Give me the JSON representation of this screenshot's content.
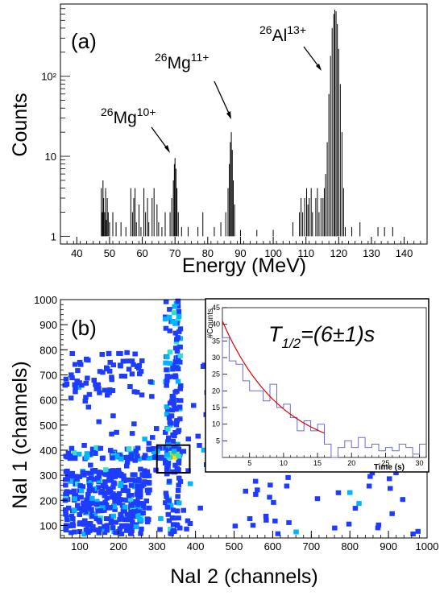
{
  "chart_data": [
    {
      "panel": "(a)",
      "type": "bar",
      "xlabel": "Energy (MeV)",
      "ylabel": "Counts",
      "log_y": true,
      "xlim": [
        35,
        147
      ],
      "ylim": [
        0.8,
        800
      ],
      "xticks": [
        40,
        50,
        60,
        70,
        80,
        90,
        100,
        110,
        120,
        130,
        140
      ],
      "yticks": [
        {
          "value": 1,
          "label": "1"
        },
        {
          "value": 10,
          "label": "10"
        },
        {
          "value": 100,
          "label": "10²"
        }
      ],
      "peaks": [
        {
          "label_mass": "26",
          "label_element": "Mg",
          "label_charge": "10+",
          "energy": 70,
          "counts": 9.5
        },
        {
          "label_mass": "26",
          "label_element": "Mg",
          "label_charge": "11+",
          "energy": 87,
          "counts": 20
        },
        {
          "label_mass": "26",
          "label_element": "Al",
          "label_charge": "13+",
          "energy": 119,
          "counts": 680
        }
      ],
      "histogram": [
        [
          47.5,
          4
        ],
        [
          47.8,
          2
        ],
        [
          48.0,
          5
        ],
        [
          48.2,
          3
        ],
        [
          48.5,
          2
        ],
        [
          48.8,
          4
        ],
        [
          49.0,
          1.6
        ],
        [
          49.3,
          3
        ],
        [
          49.6,
          2
        ],
        [
          50.0,
          1.5
        ],
        [
          51.0,
          2
        ],
        [
          52.0,
          1.5
        ],
        [
          53.5,
          1.5
        ],
        [
          55.0,
          1.3
        ],
        [
          56.5,
          4
        ],
        [
          57.0,
          2
        ],
        [
          57.4,
          3
        ],
        [
          57.8,
          4
        ],
        [
          58.2,
          1.5
        ],
        [
          59.0,
          2.5
        ],
        [
          59.6,
          1.3
        ],
        [
          60.5,
          4
        ],
        [
          61.0,
          2
        ],
        [
          61.6,
          3
        ],
        [
          62.0,
          1.5
        ],
        [
          63.0,
          3
        ],
        [
          63.6,
          4
        ],
        [
          64.5,
          2.5
        ],
        [
          65.0,
          1.5
        ],
        [
          66.0,
          1.3
        ],
        [
          67.0,
          2
        ],
        [
          68.5,
          2
        ],
        [
          69.0,
          3
        ],
        [
          69.5,
          5
        ],
        [
          69.8,
          8
        ],
        [
          70.0,
          9.5
        ],
        [
          70.3,
          7
        ],
        [
          70.6,
          4
        ],
        [
          71.0,
          2
        ],
        [
          72.0,
          1.3
        ],
        [
          74.0,
          1.3
        ],
        [
          77.0,
          1.3
        ],
        [
          78.5,
          2
        ],
        [
          82.0,
          1.3
        ],
        [
          84.0,
          1.5
        ],
        [
          85.5,
          2
        ],
        [
          86.2,
          4
        ],
        [
          86.6,
          8
        ],
        [
          86.9,
          15
        ],
        [
          87.2,
          20
        ],
        [
          87.5,
          12
        ],
        [
          87.8,
          5
        ],
        [
          88.2,
          2.5
        ],
        [
          90.0,
          1.2
        ],
        [
          95.0,
          1.2
        ],
        [
          100.0,
          1.2
        ],
        [
          106.0,
          1.5
        ],
        [
          108.0,
          2
        ],
        [
          108.5,
          3
        ],
        [
          109.0,
          2
        ],
        [
          109.6,
          3
        ],
        [
          110.2,
          4
        ],
        [
          110.6,
          2.5
        ],
        [
          111.0,
          3
        ],
        [
          111.6,
          4
        ],
        [
          112.0,
          2
        ],
        [
          113.0,
          3
        ],
        [
          113.5,
          4
        ],
        [
          114.0,
          2
        ],
        [
          114.6,
          3
        ],
        [
          115.2,
          3
        ],
        [
          115.6,
          4
        ],
        [
          116.0,
          6
        ],
        [
          116.5,
          15
        ],
        [
          117.0,
          60
        ],
        [
          117.5,
          180
        ],
        [
          118.0,
          400
        ],
        [
          118.5,
          600
        ],
        [
          118.8,
          680
        ],
        [
          119.2,
          650
        ],
        [
          119.6,
          450
        ],
        [
          120.0,
          220
        ],
        [
          120.5,
          80
        ],
        [
          121.0,
          20
        ],
        [
          121.5,
          4
        ],
        [
          122.0,
          1.3
        ],
        [
          124.0,
          1.3
        ],
        [
          126.5,
          1.5
        ],
        [
          132.0,
          1.3
        ],
        [
          134.0,
          1.3
        ],
        [
          136.5,
          1.3
        ]
      ]
    },
    {
      "panel": "(b)",
      "type": "heatmap",
      "xlabel": "NaI 2 (channels)",
      "ylabel": "NaI 1 (channels)",
      "xlim": [
        50,
        1000
      ],
      "ylim": [
        50,
        1000
      ],
      "xticks": [
        100,
        200,
        300,
        400,
        500,
        600,
        700,
        800,
        900,
        1000
      ],
      "yticks": [
        100,
        200,
        300,
        400,
        500,
        600,
        700,
        800,
        900,
        1000
      ],
      "box": {
        "x": [
          300,
          385
        ],
        "y": [
          310,
          420
        ]
      },
      "palette": [
        "#1e3cff",
        "#00b4ff",
        "#30e0c8",
        "#8be63a",
        "#ffe000",
        "#ff3000"
      ],
      "inset": {
        "type": "line",
        "xlabel": "Time (s)",
        "ylabel": "#Counts",
        "xlim": [
          1,
          31
        ],
        "ylim": [
          0,
          45
        ],
        "xticks": [
          5,
          10,
          15,
          20,
          25,
          30
        ],
        "yticks": [
          5,
          10,
          15,
          20,
          25,
          30,
          35,
          40,
          45
        ],
        "halflife_text": "T",
        "halflife_sub": "1/2",
        "halflife_value": "=(6±1)s",
        "hist_x": [
          1,
          2,
          3,
          4,
          5,
          6,
          7,
          8,
          9,
          10,
          11,
          12,
          13,
          14,
          15,
          16,
          17,
          18,
          19,
          20,
          21,
          22,
          23,
          24,
          25,
          26,
          27,
          28,
          29,
          30,
          31
        ],
        "hist_y": [
          36,
          29,
          28,
          23,
          20,
          20,
          17,
          22,
          15,
          16,
          12,
          8,
          11,
          8,
          10,
          4,
          0,
          3,
          5,
          3,
          6,
          3,
          4,
          2,
          3,
          2,
          4,
          3,
          1,
          4
        ],
        "fit": {
          "A": 41,
          "tau": 8.7,
          "x_start": 1,
          "x_end": 16
        }
      }
    }
  ]
}
